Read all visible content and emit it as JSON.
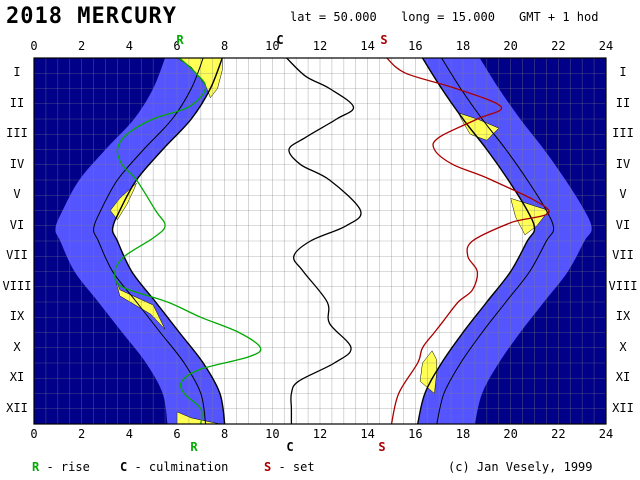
{
  "header": {
    "title": "2018 MERCURY",
    "lat_label": "lat = 50.000",
    "long_label": "long = 15.000",
    "tz_label": "GMT + 1 hod"
  },
  "axis": {
    "hour_ticks": [
      "0",
      "2",
      "4",
      "6",
      "8",
      "10",
      "12",
      "14",
      "16",
      "18",
      "20",
      "22",
      "24"
    ],
    "months": [
      "I",
      "II",
      "III",
      "IV",
      "V",
      "VI",
      "VII",
      "VIII",
      "IX",
      "X",
      "XI",
      "XII"
    ],
    "top_markers": {
      "rise": "R",
      "culmination": "C",
      "set": "S"
    },
    "bottom_markers": {
      "rise": "R",
      "culmination": "C",
      "set": "S"
    }
  },
  "legend": {
    "rise_key": "R",
    "rise_text": "- rise",
    "culm_key": "C",
    "culm_text": "- culmination",
    "set_key": "S",
    "set_text": "- set",
    "credit": "(c) Jan Vesely, 1999"
  },
  "colors": {
    "night": "#000088",
    "twilight": "#5555ff",
    "planet_up": "#ffff55",
    "rise": "#00aa00",
    "culmination": "#000000",
    "set": "#aa0000",
    "grid": "#808080"
  },
  "chart_data": {
    "type": "line",
    "x_unit": "hour of day",
    "xlim": [
      0,
      24
    ],
    "y_unit": "month",
    "series": [
      {
        "name": "rise",
        "key": "R",
        "points": [
          [
            0,
            6.1
          ],
          [
            0.5,
            6.8
          ],
          [
            1,
            7.2
          ],
          [
            1.6,
            6.5
          ],
          [
            2,
            5.0
          ],
          [
            2.5,
            3.9
          ],
          [
            3,
            3.5
          ],
          [
            3.5,
            3.7
          ],
          [
            4,
            4.3
          ],
          [
            5,
            5.1
          ],
          [
            5.5,
            5.5
          ],
          [
            5.9,
            5.0
          ],
          [
            6.5,
            3.8
          ],
          [
            7,
            3.4
          ],
          [
            7.5,
            3.7
          ],
          [
            8,
            5.6
          ],
          [
            8.5,
            7.0
          ],
          [
            9,
            8.6
          ],
          [
            9.5,
            9.5
          ],
          [
            9.8,
            9.0
          ],
          [
            10.2,
            7.0
          ],
          [
            10.6,
            6.2
          ],
          [
            11,
            6.3
          ],
          [
            11.5,
            7.0
          ],
          [
            12,
            7.0
          ]
        ]
      },
      {
        "name": "culmination",
        "key": "C",
        "points": [
          [
            0,
            10.6
          ],
          [
            0.6,
            11.4
          ],
          [
            1,
            12.4
          ],
          [
            1.6,
            13.4
          ],
          [
            2,
            12.7
          ],
          [
            2.6,
            11.4
          ],
          [
            3,
            10.7
          ],
          [
            3.5,
            11.2
          ],
          [
            4,
            12.4
          ],
          [
            5,
            13.7
          ],
          [
            5.5,
            13.1
          ],
          [
            6,
            11.6
          ],
          [
            6.5,
            10.9
          ],
          [
            7,
            11.3
          ],
          [
            8,
            12.3
          ],
          [
            8.7,
            12.4
          ],
          [
            9.5,
            13.3
          ],
          [
            10,
            12.6
          ],
          [
            10.6,
            11.1
          ],
          [
            11,
            10.8
          ],
          [
            11.5,
            10.8
          ],
          [
            12,
            10.8
          ]
        ]
      },
      {
        "name": "set",
        "key": "S",
        "points": [
          [
            0,
            14.8
          ],
          [
            0.5,
            15.6
          ],
          [
            1,
            17.7
          ],
          [
            1.6,
            19.6
          ],
          [
            2,
            18.6
          ],
          [
            2.6,
            17.0
          ],
          [
            3,
            16.8
          ],
          [
            3.5,
            17.6
          ],
          [
            4,
            19.2
          ],
          [
            5,
            21.6
          ],
          [
            5.4,
            20.0
          ],
          [
            6,
            18.4
          ],
          [
            6.5,
            18.2
          ],
          [
            7,
            18.6
          ],
          [
            7.6,
            18.4
          ],
          [
            8,
            17.8
          ],
          [
            8.6,
            17.2
          ],
          [
            9,
            16.8
          ],
          [
            9.5,
            16.3
          ],
          [
            10,
            16.1
          ],
          [
            11,
            15.3
          ],
          [
            12,
            15.0
          ]
        ]
      }
    ],
    "sun_band": {
      "sunrise": [
        [
          0,
          7.9
        ],
        [
          1,
          7.4
        ],
        [
          2,
          6.6
        ],
        [
          3,
          5.4
        ],
        [
          4,
          4.3
        ],
        [
          5,
          3.6
        ],
        [
          5.6,
          3.3
        ],
        [
          6,
          3.5
        ],
        [
          7,
          4.1
        ],
        [
          8,
          5.1
        ],
        [
          9,
          6.1
        ],
        [
          10,
          7.1
        ],
        [
          11,
          7.8
        ],
        [
          12,
          8.0
        ]
      ],
      "sunset": [
        [
          0,
          16.3
        ],
        [
          1,
          17.1
        ],
        [
          2,
          18.0
        ],
        [
          3,
          19.0
        ],
        [
          4,
          19.9
        ],
        [
          5,
          20.7
        ],
        [
          5.6,
          21.0
        ],
        [
          6,
          20.7
        ],
        [
          7,
          20.0
        ],
        [
          8,
          19.0
        ],
        [
          9,
          18.0
        ],
        [
          10,
          17.1
        ],
        [
          11,
          16.4
        ],
        [
          12,
          16.1
        ]
      ]
    }
  }
}
